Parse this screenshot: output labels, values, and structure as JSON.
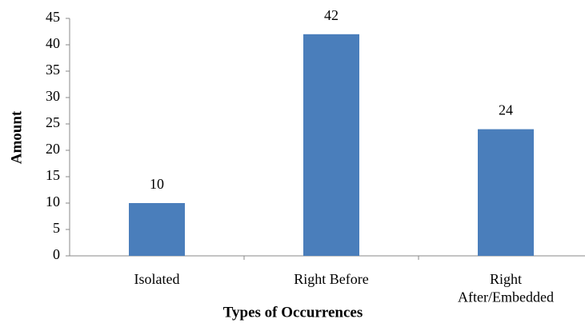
{
  "chart_data": {
    "type": "bar",
    "x_label": "Types of Occurrences",
    "y_label": "Amount",
    "categories": [
      "Isolated",
      "Right Before",
      "Right\nAfter/Embedded"
    ],
    "values": [
      10,
      42,
      24
    ],
    "color": "#4a7ebb",
    "ylim": [
      0,
      45
    ],
    "yticks": [
      0,
      5,
      10,
      15,
      20,
      25,
      30,
      35,
      40,
      45
    ],
    "grid": false
  }
}
